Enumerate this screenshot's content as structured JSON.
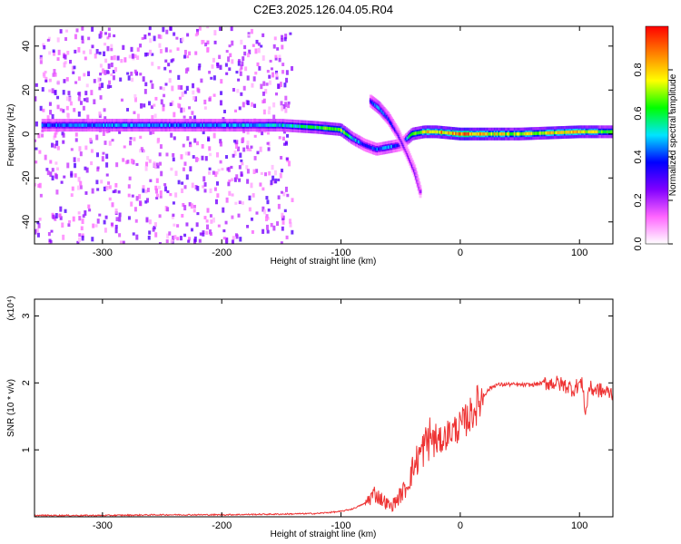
{
  "title": "C2E3.2025.126.04.05.R04",
  "chart_data": [
    {
      "type": "heatmap",
      "xlabel": "Height of straight line (km)",
      "ylabel": "Frequency (Hz)",
      "xlim": [
        -357,
        128
      ],
      "ylim": [
        -50,
        49
      ],
      "x_ticks": [
        -300,
        -200,
        -100,
        0,
        100
      ],
      "y_ticks": [
        -40,
        -20,
        0,
        20,
        40
      ],
      "grid": false,
      "colorbar": {
        "label": "Normalized spectral amplitude",
        "range": [
          0.0,
          1.0
        ],
        "ticks": [
          0.0,
          0.2,
          0.4,
          0.6,
          0.8
        ],
        "colormap": [
          "#ffffff",
          "#ff66ff",
          "#8000ff",
          "#0000ff",
          "#00e5ff",
          "#00ff00",
          "#ffff00",
          "#ff8000",
          "#ff0000"
        ]
      },
      "features": [
        {
          "name": "carrier",
          "x": [
            -350,
            -300,
            -250,
            -200,
            -150,
            -120,
            -100,
            -90,
            -80,
            -70,
            -60,
            -50,
            -40,
            -30,
            -20,
            0,
            50,
            100,
            128
          ],
          "freq": [
            4,
            4,
            4,
            4,
            4,
            3,
            2,
            -2,
            -5,
            -7,
            -6,
            -5,
            0,
            1,
            1,
            0,
            0,
            1,
            1
          ],
          "amplitude": [
            0.4,
            0.45,
            0.45,
            0.45,
            0.5,
            0.6,
            0.7,
            0.5,
            0.4,
            0.4,
            0.5,
            0.3,
            0.6,
            0.8,
            0.8,
            0.85,
            0.7,
            0.8,
            0.6
          ]
        },
        {
          "name": "sideband",
          "x": [
            -75,
            -68,
            -60,
            -52,
            -45,
            -38,
            -33
          ],
          "freq": [
            15,
            12,
            7,
            0,
            -8,
            -17,
            -27
          ],
          "amplitude": [
            0.3,
            0.5,
            0.4,
            0.3,
            0.25,
            0.25,
            0.2
          ]
        }
      ],
      "noise_region": {
        "x": [
          -357,
          -140
        ],
        "freq": [
          -50,
          49
        ],
        "amplitude_range": [
          0.05,
          0.3
        ]
      }
    },
    {
      "type": "line",
      "xlabel": "Height of straight line (km)",
      "ylabel": "SNR (10 * v/v)",
      "y_scale_label": "(x10⁴)",
      "xlim": [
        -357,
        128
      ],
      "ylim": [
        0,
        3.25
      ],
      "x_ticks": [
        -300,
        -200,
        -100,
        0,
        100
      ],
      "y_ticks": [
        1,
        2,
        3
      ],
      "grid": false,
      "series": [
        {
          "color": "#ee3333",
          "x": [
            -357,
            -300,
            -250,
            -200,
            -150,
            -120,
            -100,
            -90,
            -80,
            -72,
            -65,
            -58,
            -52,
            -45,
            -40,
            -35,
            -30,
            -25,
            -20,
            -15,
            -10,
            -5,
            0,
            5,
            10,
            15,
            20,
            25,
            30,
            40,
            50,
            60,
            70,
            80,
            90,
            95,
            100,
            103,
            105,
            108,
            110,
            115,
            120,
            128
          ],
          "y": [
            0.02,
            0.02,
            0.03,
            0.03,
            0.04,
            0.05,
            0.08,
            0.12,
            0.2,
            0.35,
            0.25,
            0.15,
            0.28,
            0.45,
            0.7,
            0.9,
            1.05,
            1.2,
            1.1,
            1.15,
            1.25,
            1.3,
            1.35,
            1.45,
            1.55,
            1.7,
            1.82,
            1.92,
            1.97,
            1.98,
            1.97,
            1.97,
            2.0,
            2.0,
            1.95,
            1.9,
            2.0,
            1.95,
            1.5,
            1.95,
            1.9,
            1.9,
            1.87,
            1.85
          ]
        }
      ]
    }
  ]
}
